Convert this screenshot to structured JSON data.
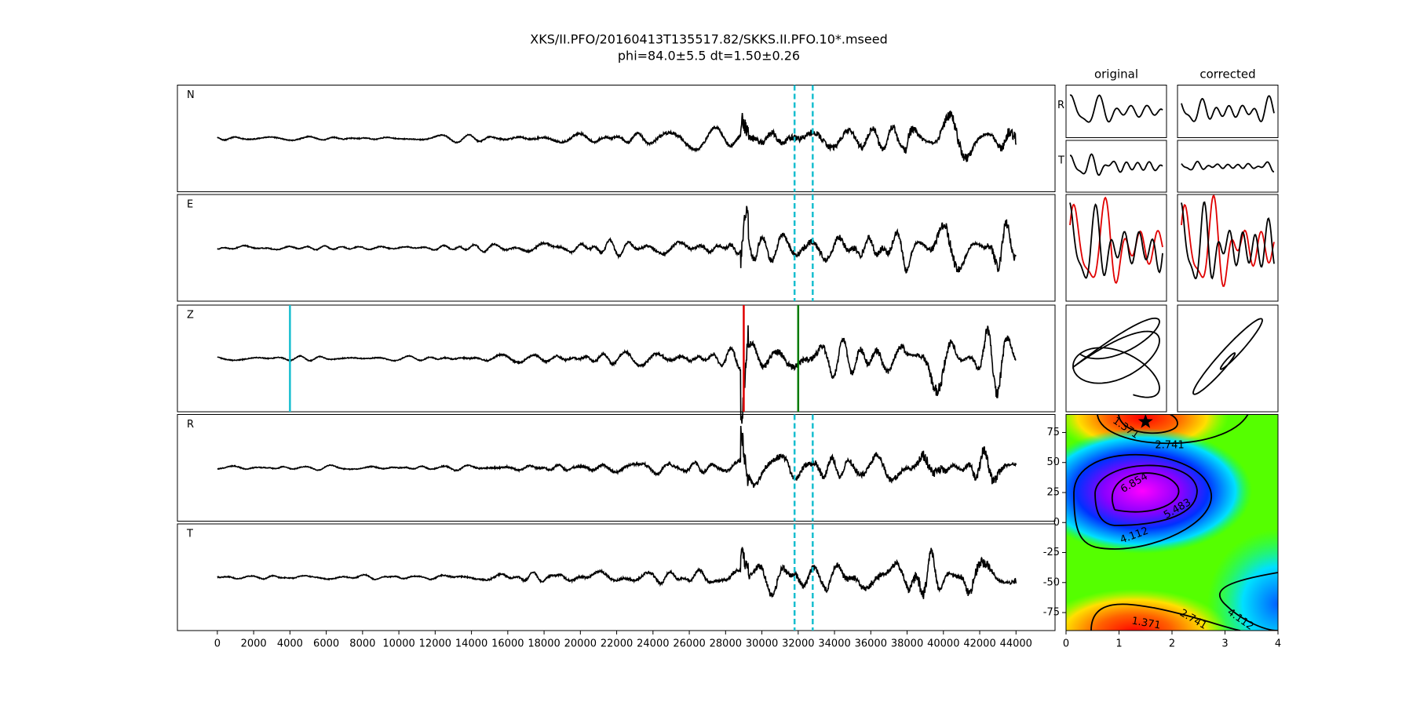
{
  "header": {
    "title": "XKS/II.PFO/20160413T135517.82/SKKS.II.PFO.10*.mseed",
    "subtitle": "phi=84.0±5.5 dt=1.50±0.26"
  },
  "chart_data": [
    {
      "type": "seismogram",
      "panels": [
        "N",
        "E",
        "Z",
        "R",
        "T"
      ],
      "xlim": [
        -2200,
        46150
      ],
      "xticks": [
        0,
        2000,
        4000,
        6000,
        8000,
        10000,
        12000,
        14000,
        16000,
        18000,
        20000,
        22000,
        24000,
        26000,
        28000,
        30000,
        32000,
        34000,
        36000,
        38000,
        40000,
        42000,
        44000
      ],
      "window": [
        31800,
        32800
      ],
      "window_color": "#17becf",
      "picks": [
        {
          "x": 4000,
          "color": "#17becf"
        },
        {
          "x": 29000,
          "color": "#e00000"
        },
        {
          "x": 32000,
          "color": "#007a00"
        }
      ]
    },
    {
      "type": "particle",
      "columns": [
        "original",
        "corrected"
      ],
      "rows": [
        "R",
        "T"
      ]
    },
    {
      "type": "contour",
      "xlim": [
        0,
        4
      ],
      "ylim": [
        -90,
        90
      ],
      "xticks": [
        0,
        1,
        2,
        3,
        4
      ],
      "yticks": [
        -75,
        -50,
        -25,
        0,
        25,
        50,
        75
      ],
      "levels": [
        1.371,
        2.741,
        4.112,
        5.483,
        6.854
      ],
      "best": {
        "x": 1.5,
        "y": 84
      }
    }
  ]
}
